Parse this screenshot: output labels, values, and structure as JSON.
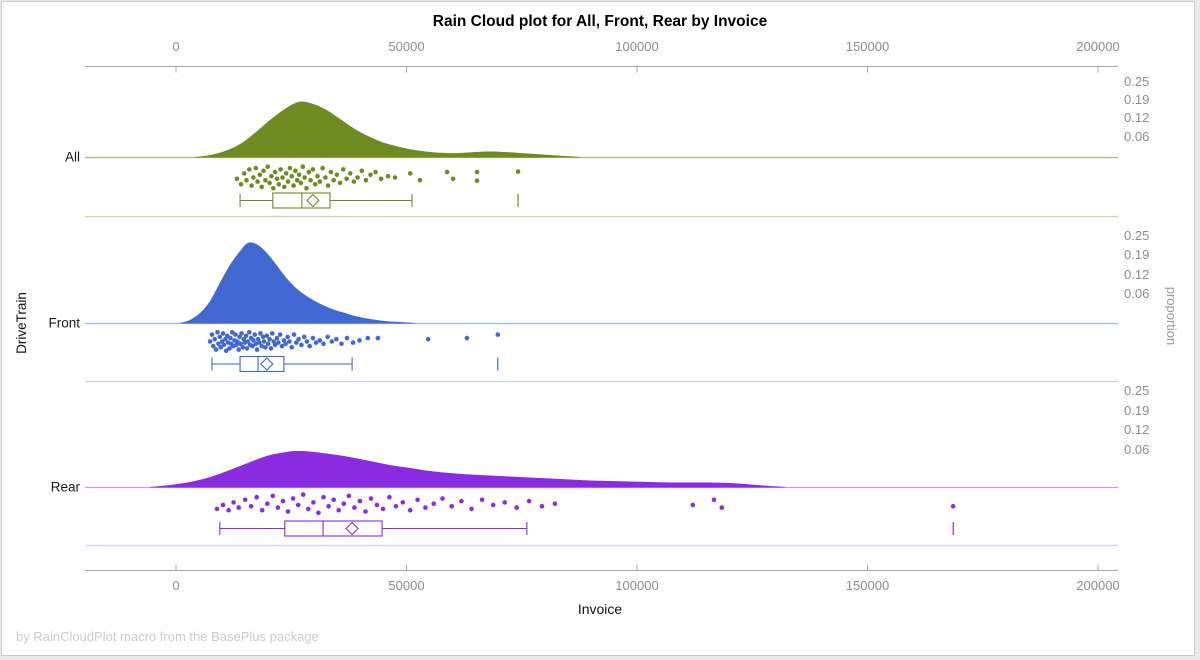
{
  "footer": "by RainCloudPlot macro from the BasePlus package",
  "chart_data": {
    "type": "raincloud",
    "title": "Rain Cloud plot for All, Front, Rear by Invoice",
    "xlabel": "Invoice",
    "ylabel": "DriveTrain",
    "y2label": "proportion",
    "x_range": [
      0,
      200000
    ],
    "x_ticks": [
      0,
      50000,
      100000,
      150000,
      200000
    ],
    "x_tick_labels": [
      "0",
      "50000",
      "100000",
      "150000",
      "200000"
    ],
    "proportion_tick_labels": [
      "0.25",
      "0.19",
      "0.12",
      "0.06"
    ],
    "categories": [
      "All",
      "Front",
      "Rear"
    ],
    "grid": false,
    "legend": "none",
    "height_units": "px_above_baseline",
    "series": [
      {
        "name": "All",
        "color": "#6d8b21",
        "baseline_color": "#a9bf77",
        "separator_color": "#cdd9ab",
        "density": [
          [
            4100,
            0
          ],
          [
            7400,
            2
          ],
          [
            10600,
            6
          ],
          [
            13900,
            13
          ],
          [
            17100,
            24
          ],
          [
            20400,
            37
          ],
          [
            23600,
            48
          ],
          [
            26500,
            55
          ],
          [
            29100,
            54
          ],
          [
            32300,
            48
          ],
          [
            35600,
            38
          ],
          [
            38800,
            28
          ],
          [
            42100,
            20
          ],
          [
            45300,
            14
          ],
          [
            48600,
            10
          ],
          [
            51800,
            7
          ],
          [
            55100,
            5
          ],
          [
            58400,
            4
          ],
          [
            61600,
            4
          ],
          [
            64900,
            5
          ],
          [
            68100,
            5.5
          ],
          [
            71400,
            5
          ],
          [
            74600,
            4
          ],
          [
            77900,
            3
          ],
          [
            81100,
            2
          ],
          [
            84400,
            1
          ],
          [
            87600,
            0
          ]
        ],
        "box": {
          "low": 13900,
          "q1": 21000,
          "median": 27300,
          "q3": 33400,
          "high": 51200,
          "mean": 29700,
          "outliers": [
            74200
          ]
        },
        "rain": [
          [
            13200,
            0.55
          ],
          [
            14100,
            0.75
          ],
          [
            14800,
            0.35
          ],
          [
            15300,
            0.6
          ],
          [
            15900,
            0.2
          ],
          [
            16400,
            0.8
          ],
          [
            16800,
            0.5
          ],
          [
            17300,
            0.15
          ],
          [
            17700,
            0.65
          ],
          [
            18200,
            0.4
          ],
          [
            18600,
            0.85
          ],
          [
            19000,
            0.25
          ],
          [
            19400,
            0.6
          ],
          [
            19900,
            0.1
          ],
          [
            20300,
            0.7
          ],
          [
            20700,
            0.45
          ],
          [
            21100,
            0.9
          ],
          [
            21500,
            0.3
          ],
          [
            21900,
            0.55
          ],
          [
            22300,
            0.75
          ],
          [
            22700,
            0.2
          ],
          [
            23100,
            0.5
          ],
          [
            23500,
            0.85
          ],
          [
            23900,
            0.35
          ],
          [
            24300,
            0.65
          ],
          [
            24700,
            0.15
          ],
          [
            25100,
            0.45
          ],
          [
            25500,
            0.8
          ],
          [
            25900,
            0.25
          ],
          [
            26300,
            0.6
          ],
          [
            26700,
            0.4
          ],
          [
            27100,
            0.7
          ],
          [
            27500,
            0.1
          ],
          [
            27900,
            0.5
          ],
          [
            28300,
            0.9
          ],
          [
            28800,
            0.3
          ],
          [
            29200,
            0.6
          ],
          [
            29700,
            0.2
          ],
          [
            30200,
            0.75
          ],
          [
            30700,
            0.45
          ],
          [
            31200,
            0.65
          ],
          [
            31800,
            0.15
          ],
          [
            32400,
            0.5
          ],
          [
            33000,
            0.8
          ],
          [
            33600,
            0.3
          ],
          [
            34200,
            0.6
          ],
          [
            34900,
            0.4
          ],
          [
            35600,
            0.7
          ],
          [
            36300,
            0.2
          ],
          [
            37000,
            0.55
          ],
          [
            37800,
            0.35
          ],
          [
            38600,
            0.65
          ],
          [
            39400,
            0.5
          ],
          [
            40300,
            0.25
          ],
          [
            41200,
            0.6
          ],
          [
            42200,
            0.4
          ],
          [
            43300,
            0.3
          ],
          [
            44500,
            0.55
          ],
          [
            46000,
            0.45
          ],
          [
            47500,
            0.5
          ],
          [
            50800,
            0.35
          ],
          [
            52900,
            0.6
          ],
          [
            58800,
            0.3
          ],
          [
            60100,
            0.55
          ],
          [
            65300,
            0.3
          ],
          [
            65300,
            0.62
          ],
          [
            74200,
            0.28
          ]
        ]
      },
      {
        "name": "Front",
        "color": "#4167d2",
        "baseline_color": "#9db5e8",
        "separator_color": "#c6d3f1",
        "density": [
          [
            900,
            0
          ],
          [
            3000,
            3
          ],
          [
            5200,
            10
          ],
          [
            7400,
            22
          ],
          [
            9500,
            40
          ],
          [
            11700,
            58
          ],
          [
            13900,
            72
          ],
          [
            15600,
            80
          ],
          [
            17400,
            79
          ],
          [
            19300,
            72
          ],
          [
            21500,
            60
          ],
          [
            23600,
            47
          ],
          [
            25800,
            36
          ],
          [
            28000,
            28
          ],
          [
            30100,
            22
          ],
          [
            32300,
            17
          ],
          [
            34500,
            13
          ],
          [
            36700,
            10
          ],
          [
            38800,
            7
          ],
          [
            42100,
            4
          ],
          [
            45300,
            2
          ],
          [
            48600,
            1
          ],
          [
            51800,
            0
          ]
        ],
        "box": {
          "low": 7800,
          "q1": 13900,
          "median": 17800,
          "q3": 23400,
          "high": 38200,
          "mean": 19700,
          "outliers": [
            69800
          ]
        },
        "rain": [
          [
            7400,
            0.5
          ],
          [
            7800,
            0.2
          ],
          [
            8100,
            0.7
          ],
          [
            8400,
            0.4
          ],
          [
            8700,
            0.85
          ],
          [
            9000,
            0.1
          ],
          [
            9200,
            0.6
          ],
          [
            9500,
            0.3
          ],
          [
            9700,
            0.75
          ],
          [
            10000,
            0.5
          ],
          [
            10200,
            0.15
          ],
          [
            10400,
            0.65
          ],
          [
            10700,
            0.4
          ],
          [
            10900,
            0.9
          ],
          [
            11100,
            0.25
          ],
          [
            11300,
            0.55
          ],
          [
            11600,
            0.8
          ],
          [
            11800,
            0.35
          ],
          [
            12000,
            0.6
          ],
          [
            12200,
            0.1
          ],
          [
            12400,
            0.7
          ],
          [
            12700,
            0.45
          ],
          [
            12900,
            0.2
          ],
          [
            13100,
            0.65
          ],
          [
            13300,
            0.5
          ],
          [
            13600,
            0.85
          ],
          [
            13800,
            0.3
          ],
          [
            14000,
            0.6
          ],
          [
            14200,
            0.15
          ],
          [
            14500,
            0.75
          ],
          [
            14700,
            0.4
          ],
          [
            14900,
            0.55
          ],
          [
            15200,
            0.25
          ],
          [
            15400,
            0.8
          ],
          [
            15600,
            0.5
          ],
          [
            15900,
            0.1
          ],
          [
            16100,
            0.65
          ],
          [
            16300,
            0.35
          ],
          [
            16600,
            0.7
          ],
          [
            16800,
            0.45
          ],
          [
            17100,
            0.2
          ],
          [
            17300,
            0.6
          ],
          [
            17600,
            0.85
          ],
          [
            17800,
            0.4
          ],
          [
            18100,
            0.55
          ],
          [
            18300,
            0.15
          ],
          [
            18600,
            0.7
          ],
          [
            18900,
            0.3
          ],
          [
            19100,
            0.5
          ],
          [
            19400,
            0.75
          ],
          [
            19700,
            0.25
          ],
          [
            20000,
            0.6
          ],
          [
            20300,
            0.4
          ],
          [
            20600,
            0.8
          ],
          [
            20900,
            0.15
          ],
          [
            21200,
            0.5
          ],
          [
            21500,
            0.65
          ],
          [
            21900,
            0.35
          ],
          [
            22200,
            0.55
          ],
          [
            22600,
            0.2
          ],
          [
            23000,
            0.7
          ],
          [
            23400,
            0.45
          ],
          [
            23800,
            0.6
          ],
          [
            24200,
            0.3
          ],
          [
            24600,
            0.5
          ],
          [
            25100,
            0.75
          ],
          [
            25600,
            0.2
          ],
          [
            26100,
            0.55
          ],
          [
            26600,
            0.4
          ],
          [
            27200,
            0.65
          ],
          [
            27800,
            0.3
          ],
          [
            28400,
            0.5
          ],
          [
            29000,
            0.7
          ],
          [
            29700,
            0.35
          ],
          [
            30400,
            0.55
          ],
          [
            31200,
            0.45
          ],
          [
            32000,
            0.6
          ],
          [
            32900,
            0.3
          ],
          [
            33800,
            0.5
          ],
          [
            34800,
            0.4
          ],
          [
            35900,
            0.6
          ],
          [
            37100,
            0.35
          ],
          [
            38400,
            0.55
          ],
          [
            39800,
            0.45
          ],
          [
            41600,
            0.35
          ],
          [
            43800,
            0.35
          ],
          [
            54700,
            0.4
          ],
          [
            63100,
            0.35
          ],
          [
            69800,
            0.2
          ]
        ]
      },
      {
        "name": "Rear",
        "color": "#8a2be2",
        "baseline_color": "#c59ae8",
        "separator_color": "#e0ccf3",
        "density": [
          [
            -5600,
            0
          ],
          [
            -1300,
            2
          ],
          [
            3000,
            5
          ],
          [
            7400,
            10
          ],
          [
            11700,
            17
          ],
          [
            16100,
            25
          ],
          [
            20400,
            32
          ],
          [
            24700,
            35.5
          ],
          [
            26500,
            36
          ],
          [
            29100,
            35.5
          ],
          [
            33400,
            33
          ],
          [
            37700,
            30
          ],
          [
            42100,
            26
          ],
          [
            46400,
            22
          ],
          [
            50800,
            19
          ],
          [
            55100,
            16
          ],
          [
            59400,
            14
          ],
          [
            63800,
            12.5
          ],
          [
            68100,
            11.5
          ],
          [
            72400,
            10.5
          ],
          [
            76800,
            9.5
          ],
          [
            81100,
            8.5
          ],
          [
            85500,
            7.5
          ],
          [
            89800,
            6.5
          ],
          [
            94100,
            6
          ],
          [
            98500,
            5.5
          ],
          [
            102800,
            5
          ],
          [
            107100,
            4.5
          ],
          [
            111500,
            4.5
          ],
          [
            115800,
            4.5
          ],
          [
            120200,
            4
          ],
          [
            123400,
            3
          ],
          [
            126000,
            2
          ],
          [
            128800,
            1
          ],
          [
            132100,
            0
          ]
        ],
        "box": {
          "low": 9500,
          "q1": 23600,
          "median": 31900,
          "q3": 44700,
          "high": 76100,
          "mean": 38200,
          "outliers": [
            168600
          ]
        },
        "rain": [
          [
            8900,
            0.65
          ],
          [
            10200,
            0.5
          ],
          [
            11400,
            0.7
          ],
          [
            12500,
            0.4
          ],
          [
            13600,
            0.6
          ],
          [
            15000,
            0.3
          ],
          [
            16300,
            0.55
          ],
          [
            17500,
            0.2
          ],
          [
            18700,
            0.7
          ],
          [
            19800,
            0.45
          ],
          [
            21000,
            0.15
          ],
          [
            22100,
            0.6
          ],
          [
            23200,
            0.35
          ],
          [
            24300,
            0.75
          ],
          [
            25400,
            0.25
          ],
          [
            26500,
            0.5
          ],
          [
            27600,
            0.1
          ],
          [
            28700,
            0.65
          ],
          [
            29800,
            0.4
          ],
          [
            30900,
            0.8
          ],
          [
            32000,
            0.2
          ],
          [
            33100,
            0.55
          ],
          [
            34200,
            0.3
          ],
          [
            35300,
            0.7
          ],
          [
            36400,
            0.45
          ],
          [
            37500,
            0.15
          ],
          [
            38700,
            0.6
          ],
          [
            39900,
            0.35
          ],
          [
            41100,
            0.75
          ],
          [
            42300,
            0.25
          ],
          [
            43600,
            0.5
          ],
          [
            44900,
            0.65
          ],
          [
            46300,
            0.2
          ],
          [
            47700,
            0.55
          ],
          [
            49200,
            0.4
          ],
          [
            50800,
            0.7
          ],
          [
            52400,
            0.3
          ],
          [
            54100,
            0.6
          ],
          [
            55900,
            0.45
          ],
          [
            57800,
            0.25
          ],
          [
            59800,
            0.55
          ],
          [
            61900,
            0.35
          ],
          [
            64100,
            0.65
          ],
          [
            66400,
            0.3
          ],
          [
            68800,
            0.5
          ],
          [
            71300,
            0.4
          ],
          [
            73900,
            0.6
          ],
          [
            76600,
            0.35
          ],
          [
            79400,
            0.55
          ],
          [
            82200,
            0.45
          ],
          [
            112100,
            0.5
          ],
          [
            116700,
            0.3
          ],
          [
            118400,
            0.6
          ],
          [
            168600,
            0.55
          ]
        ]
      }
    ]
  }
}
